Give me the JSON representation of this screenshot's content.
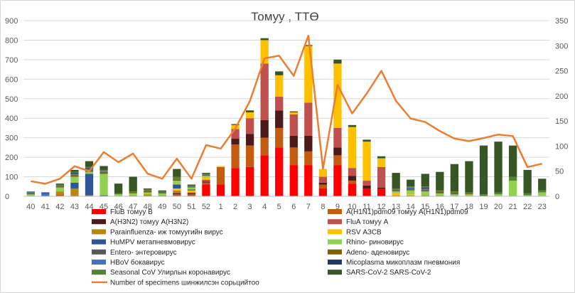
{
  "chart_data": {
    "type": "bar",
    "title": "Томуу , ТТӨ",
    "categories": [
      "40",
      "41",
      "42",
      "43",
      "44",
      "45",
      "46",
      "47",
      "48",
      "49",
      "50",
      "51",
      "52",
      "1",
      "2",
      "3",
      "4",
      "5",
      "6",
      "7",
      "8",
      "9",
      "10",
      "11",
      "12",
      "13",
      "14",
      "15",
      "16",
      "17",
      "18",
      "19",
      "20",
      "21",
      "22",
      "23"
    ],
    "ylim": [
      0,
      900
    ],
    "y2lim": [
      0,
      350
    ],
    "yticks": [
      0,
      100,
      200,
      300,
      400,
      500,
      600,
      700,
      800,
      900
    ],
    "y2ticks": [
      0,
      50,
      100,
      150,
      200,
      250,
      300,
      350
    ],
    "grid": true,
    "legend_position": "bottom",
    "series": [
      {
        "name": "FluB томуу B",
        "color": "#ff0000",
        "values": [
          0,
          0,
          0,
          0,
          0,
          0,
          0,
          0,
          0,
          0,
          0,
          0,
          60,
          60,
          145,
          150,
          210,
          250,
          160,
          160,
          40,
          160,
          65,
          40,
          40,
          0,
          0,
          0,
          0,
          0,
          0,
          0,
          0,
          0,
          0,
          0
        ]
      },
      {
        "name": "A(H1N1)pdm09 томуу A(H1N1)pdm09",
        "color": "#c55a11",
        "values": [
          0,
          0,
          10,
          5,
          0,
          0,
          0,
          0,
          0,
          0,
          10,
          10,
          10,
          90,
          120,
          110,
          90,
          100,
          90,
          70,
          20,
          50,
          15,
          0,
          0,
          0,
          0,
          0,
          0,
          0,
          0,
          0,
          0,
          0,
          0,
          0
        ]
      },
      {
        "name": "A(H3N2) томуу A(H3N2)",
        "color": "#4d1a1a",
        "values": [
          0,
          0,
          0,
          0,
          0,
          0,
          0,
          0,
          0,
          0,
          5,
          5,
          5,
          0,
          30,
          60,
          90,
          90,
          60,
          80,
          10,
          40,
          25,
          15,
          5,
          0,
          0,
          0,
          0,
          0,
          0,
          0,
          0,
          0,
          0,
          0
        ]
      },
      {
        "name": "FluA томуу A",
        "color": "#c0504d",
        "values": [
          0,
          0,
          0,
          0,
          0,
          0,
          0,
          0,
          0,
          0,
          5,
          5,
          10,
          0,
          50,
          80,
          290,
          70,
          110,
          170,
          30,
          100,
          40,
          25,
          105,
          0,
          0,
          0,
          0,
          0,
          0,
          0,
          0,
          0,
          0,
          0
        ]
      },
      {
        "name": "Parainfluenza- иж томуугийн вирус",
        "color": "#b8860b",
        "values": [
          0,
          0,
          15,
          35,
          5,
          0,
          0,
          5,
          10,
          5,
          10,
          0,
          0,
          0,
          0,
          0,
          0,
          0,
          0,
          0,
          0,
          0,
          0,
          0,
          0,
          5,
          5,
          5,
          5,
          0,
          0,
          0,
          0,
          0,
          0,
          0
        ]
      },
      {
        "name": "RSV АЗСВ",
        "color": "#ffc000",
        "values": [
          0,
          0,
          0,
          0,
          0,
          0,
          0,
          0,
          0,
          0,
          10,
          10,
          10,
          5,
          20,
          30,
          120,
          110,
          10,
          290,
          40,
          330,
          210,
          200,
          40,
          10,
          5,
          0,
          0,
          0,
          0,
          0,
          0,
          0,
          0,
          0
        ]
      },
      {
        "name": "HuMPV метапневмовирус",
        "color": "#2f5597",
        "values": [
          0,
          0,
          0,
          30,
          110,
          5,
          0,
          0,
          0,
          0,
          20,
          5,
          0,
          0,
          0,
          0,
          0,
          0,
          0,
          0,
          0,
          0,
          0,
          0,
          0,
          0,
          0,
          0,
          0,
          0,
          0,
          0,
          0,
          0,
          0,
          0
        ]
      },
      {
        "name": "Rhino- риновирус",
        "color": "#92d050",
        "values": [
          10,
          0,
          20,
          30,
          10,
          110,
          10,
          10,
          10,
          10,
          20,
          10,
          10,
          0,
          0,
          0,
          0,
          0,
          0,
          0,
          0,
          0,
          0,
          0,
          5,
          10,
          20,
          20,
          10,
          10,
          10,
          0,
          10,
          80,
          5,
          20
        ]
      },
      {
        "name": "Entero- энтеровирус",
        "color": "#595959",
        "values": [
          5,
          0,
          5,
          5,
          5,
          5,
          0,
          0,
          5,
          5,
          5,
          5,
          5,
          0,
          0,
          0,
          0,
          0,
          0,
          0,
          0,
          0,
          0,
          0,
          0,
          5,
          5,
          5,
          5,
          5,
          0,
          0,
          0,
          0,
          0,
          0
        ]
      },
      {
        "name": "Adeno- аденовирус",
        "color": "#7f6000",
        "values": [
          0,
          0,
          5,
          5,
          5,
          5,
          0,
          5,
          5,
          0,
          5,
          0,
          0,
          0,
          0,
          0,
          0,
          0,
          0,
          0,
          0,
          0,
          0,
          0,
          0,
          5,
          5,
          5,
          5,
          5,
          5,
          0,
          0,
          0,
          0,
          0
        ]
      },
      {
        "name": "HBoV бокавирус",
        "color": "#4472c4",
        "values": [
          5,
          15,
          0,
          5,
          5,
          5,
          0,
          0,
          0,
          0,
          0,
          0,
          0,
          0,
          0,
          0,
          0,
          0,
          0,
          0,
          0,
          0,
          0,
          0,
          0,
          0,
          5,
          5,
          0,
          0,
          0,
          0,
          0,
          0,
          0,
          0
        ]
      },
      {
        "name": "Micoplasma микоплазм пневмония",
        "color": "#203864",
        "values": [
          0,
          5,
          0,
          5,
          5,
          0,
          0,
          0,
          0,
          0,
          0,
          0,
          0,
          0,
          0,
          0,
          0,
          0,
          0,
          0,
          0,
          0,
          0,
          0,
          0,
          0,
          0,
          5,
          0,
          0,
          0,
          0,
          0,
          0,
          0,
          0
        ]
      },
      {
        "name": "Seasonal CoV Улирлын коронавирус",
        "color": "#548235",
        "values": [
          5,
          0,
          5,
          5,
          5,
          5,
          5,
          5,
          5,
          5,
          10,
          5,
          5,
          0,
          0,
          0,
          0,
          0,
          0,
          0,
          0,
          0,
          0,
          0,
          0,
          5,
          5,
          5,
          5,
          5,
          5,
          10,
          10,
          20,
          10,
          10
        ]
      },
      {
        "name": "SARS-CoV-2 SARS-CoV-2",
        "color": "#375623",
        "values": [
          0,
          0,
          5,
          10,
          30,
          20,
          50,
          75,
          5,
          5,
          40,
          5,
          5,
          0,
          5,
          10,
          10,
          20,
          5,
          5,
          0,
          20,
          10,
          10,
          10,
          80,
          35,
          65,
          95,
          140,
          160,
          250,
          260,
          160,
          120,
          60
        ]
      }
    ],
    "line": {
      "name": "Number of specimens шинжилсэн сорьцийтоо",
      "color": "#ed7d31",
      "axis": "right",
      "values": [
        30,
        25,
        35,
        60,
        50,
        88,
        68,
        85,
        45,
        35,
        75,
        35,
        102,
        95,
        135,
        190,
        275,
        280,
        240,
        320,
        55,
        222,
        165,
        205,
        250,
        190,
        155,
        148,
        130,
        115,
        110,
        116,
        123,
        120,
        58,
        65
      ]
    }
  }
}
